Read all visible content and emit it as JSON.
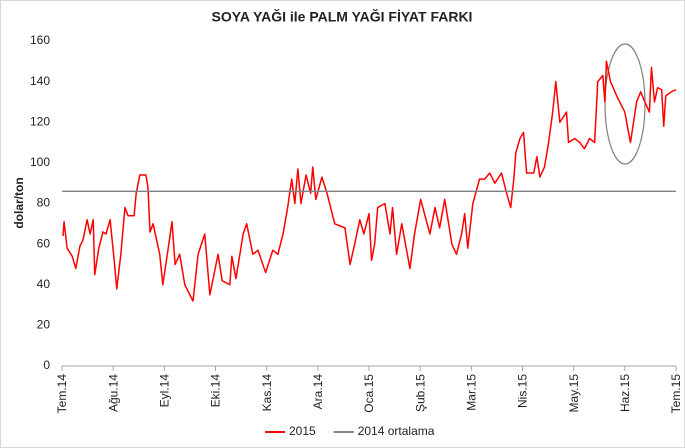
{
  "chart_data": {
    "type": "line",
    "title": "SOYA YAĞI ile PALM YAĞI FİYAT FARKI",
    "y_label": "dolar/ton",
    "xlim": [
      0,
      12
    ],
    "xticks": [
      {
        "value": 0,
        "label": "Tem.14"
      },
      {
        "value": 1,
        "label": "Ağu.14"
      },
      {
        "value": 2,
        "label": "Eyl.14"
      },
      {
        "value": 3,
        "label": "Eki.14"
      },
      {
        "value": 4,
        "label": "Kas.14"
      },
      {
        "value": 5,
        "label": "Ara.14"
      },
      {
        "value": 6,
        "label": "Oca.15"
      },
      {
        "value": 7,
        "label": "Şub.15"
      },
      {
        "value": 8,
        "label": "Mar.15"
      },
      {
        "value": 9,
        "label": "Nis.15"
      },
      {
        "value": 10,
        "label": "May.15"
      },
      {
        "value": 11,
        "label": "Haz.15"
      },
      {
        "value": 12,
        "label": "Tem.15"
      }
    ],
    "ylim": [
      0,
      160
    ],
    "yticks": [
      0,
      20,
      40,
      60,
      80,
      100,
      120,
      140,
      160
    ],
    "grid": false,
    "legend": "bottom",
    "series": [
      {
        "name": "2015",
        "color": "#ff0000",
        "x": [
          0.02,
          0.04,
          0.1,
          0.2,
          0.27,
          0.35,
          0.41,
          0.49,
          0.55,
          0.61,
          0.64,
          0.72,
          0.76,
          0.8,
          0.86,
          0.94,
          1.02,
          1.07,
          1.15,
          1.23,
          1.29,
          1.41,
          1.45,
          1.52,
          1.64,
          1.68,
          1.72,
          1.78,
          1.91,
          1.97,
          2.07,
          2.15,
          2.21,
          2.3,
          2.4,
          2.56,
          2.66,
          2.79,
          2.89,
          3.05,
          3.13,
          3.28,
          3.32,
          3.4,
          3.54,
          3.61,
          3.73,
          3.83,
          3.98,
          4.12,
          4.22,
          4.32,
          4.41,
          4.49,
          4.55,
          4.61,
          4.67,
          4.77,
          4.86,
          4.9,
          4.96,
          5.08,
          5.18,
          5.33,
          5.53,
          5.63,
          5.72,
          5.82,
          5.9,
          6.0,
          6.05,
          6.11,
          6.17,
          6.31,
          6.41,
          6.46,
          6.54,
          6.64,
          6.8,
          6.89,
          7.01,
          7.19,
          7.29,
          7.38,
          7.48,
          7.62,
          7.71,
          7.81,
          7.87,
          7.93,
          8.03,
          8.16,
          8.26,
          8.36,
          8.46,
          8.59,
          8.69,
          8.77,
          8.83,
          8.87,
          8.95,
          9.02,
          9.08,
          9.22,
          9.28,
          9.34,
          9.43,
          9.51,
          9.59,
          9.65,
          9.73,
          9.86,
          9.9,
          10.02,
          10.12,
          10.21,
          10.31,
          10.41,
          10.47,
          10.57,
          10.61,
          10.64,
          10.72,
          10.84,
          10.94,
          11.0,
          11.05,
          11.11,
          11.17,
          11.23,
          11.31,
          11.39,
          11.48,
          11.52,
          11.58,
          11.64,
          11.72,
          11.76,
          11.8,
          11.91,
          12.0
        ],
        "values": [
          64,
          71,
          58,
          54,
          48,
          59,
          62,
          72,
          65,
          72,
          45,
          58,
          62,
          66,
          65,
          72,
          52,
          38,
          55,
          78,
          74,
          74,
          85,
          94,
          94,
          88,
          66,
          70,
          55,
          40,
          57,
          71,
          50,
          55,
          40,
          32,
          55,
          65,
          35,
          55,
          42,
          40,
          54,
          43,
          65,
          70,
          55,
          57,
          46,
          57,
          55,
          65,
          78,
          92,
          80,
          97,
          80,
          94,
          85,
          98,
          82,
          93,
          85,
          70,
          68,
          50,
          60,
          72,
          65,
          75,
          52,
          60,
          78,
          80,
          65,
          78,
          55,
          70,
          48,
          65,
          82,
          65,
          78,
          68,
          82,
          60,
          55,
          65,
          75,
          58,
          80,
          92,
          92,
          95,
          90,
          95,
          85,
          78,
          92,
          105,
          112,
          115,
          95,
          95,
          103,
          93,
          98,
          110,
          125,
          140,
          120,
          125,
          110,
          112,
          110,
          107,
          112,
          110,
          140,
          143,
          130,
          150,
          140,
          133,
          128,
          125,
          118,
          110,
          120,
          130,
          135,
          130,
          125,
          147,
          130,
          137,
          136,
          118,
          133,
          135,
          136
        ]
      },
      {
        "name": "2014 ortalama",
        "color": "#808080",
        "x": [
          0,
          12
        ],
        "values": [
          86,
          86
        ]
      }
    ]
  }
}
